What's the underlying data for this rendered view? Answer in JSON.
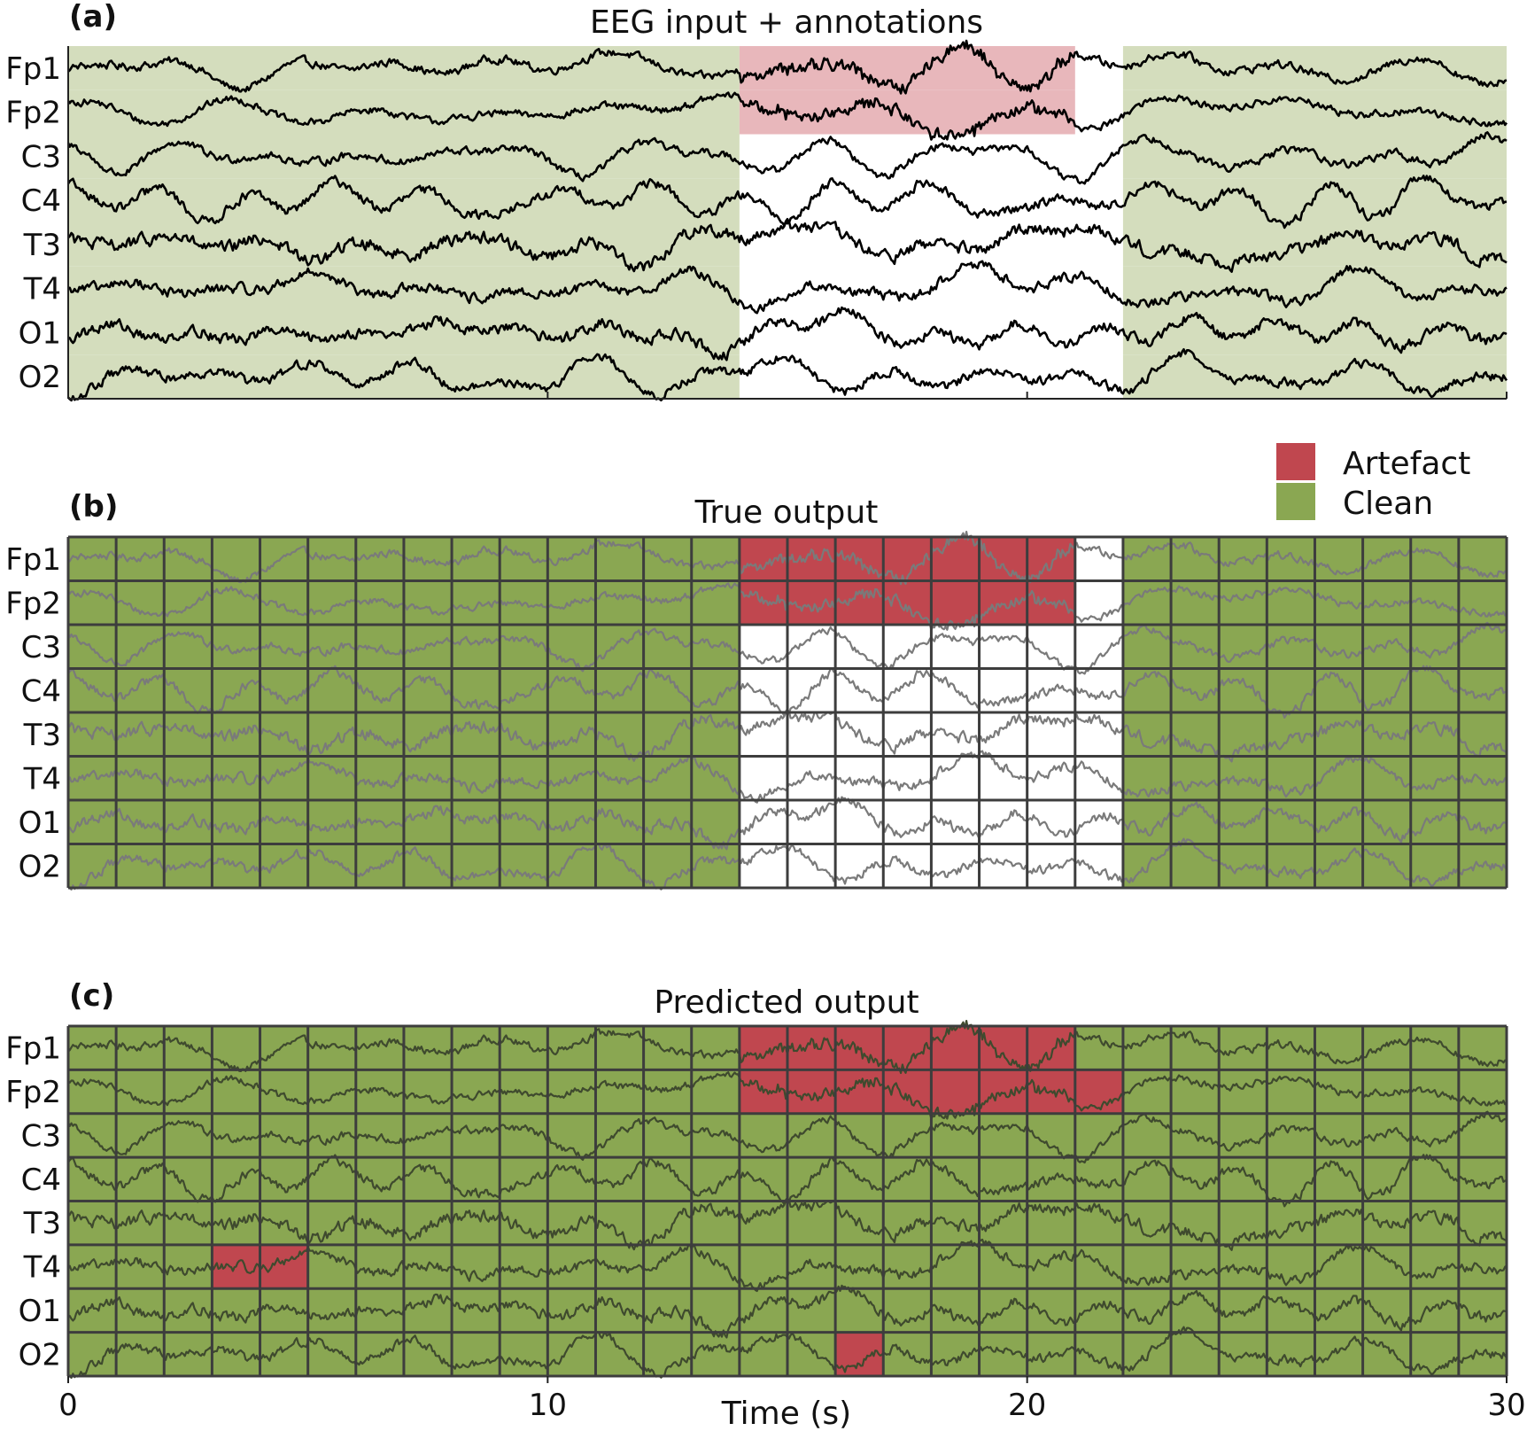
{
  "chart_data": {
    "type": "heatmap",
    "channels": [
      "Fp1",
      "Fp2",
      "C3",
      "C4",
      "T3",
      "T4",
      "O1",
      "O2"
    ],
    "xlabel": "Time (s)",
    "xlim": [
      0,
      30
    ],
    "xticks": [
      0,
      10,
      20,
      30
    ],
    "segment_seconds": 1,
    "legend": {
      "placement": "top-right",
      "entries": [
        {
          "label": "Artefact",
          "color": "#c0474f"
        },
        {
          "label": "Clean",
          "color": "#8aa752"
        }
      ]
    },
    "colors": {
      "artefact": "#c0474f",
      "clean": "#8aa752",
      "annotation_artefact": "#e8b7bb",
      "annotation_clean": "#d4ddbd",
      "grid": "#3d3d3d",
      "trace": "#000000"
    },
    "panels": [
      {
        "letter": "(a)",
        "title": "EEG input + annotations",
        "annotations": [
          {
            "label": "clean",
            "t_start": 0,
            "t_end": 14,
            "channels": [
              "Fp1",
              "Fp2",
              "C3",
              "C4",
              "T3",
              "T4",
              "O1",
              "O2"
            ]
          },
          {
            "label": "artefact",
            "t_start": 14,
            "t_end": 21,
            "channels": [
              "Fp1",
              "Fp2"
            ]
          },
          {
            "label": "clean",
            "t_start": 22,
            "t_end": 30,
            "channels": [
              "Fp1",
              "Fp2",
              "C3",
              "C4",
              "T3",
              "T4",
              "O1",
              "O2"
            ]
          }
        ]
      },
      {
        "letter": "(b)",
        "title": "True output",
        "grid": [
          {
            "label": "clean",
            "t_start": 0,
            "t_end": 14,
            "channels": [
              "Fp1",
              "Fp2",
              "C3",
              "C4",
              "T3",
              "T4",
              "O1",
              "O2"
            ]
          },
          {
            "label": "artefact",
            "t_start": 14,
            "t_end": 21,
            "channels": [
              "Fp1",
              "Fp2"
            ]
          },
          {
            "label": "clean",
            "t_start": 22,
            "t_end": 30,
            "channels": [
              "Fp1",
              "Fp2",
              "C3",
              "C4",
              "T3",
              "T4",
              "O1",
              "O2"
            ]
          }
        ]
      },
      {
        "letter": "(c)",
        "title": "Predicted output",
        "grid": [
          {
            "label": "clean",
            "t_start": 0,
            "t_end": 30,
            "channels": [
              "Fp1",
              "Fp2",
              "C3",
              "C4",
              "T3",
              "T4",
              "O1",
              "O2"
            ]
          },
          {
            "label": "artefact",
            "t_start": 14,
            "t_end": 21,
            "channels": [
              "Fp1"
            ]
          },
          {
            "label": "artefact",
            "t_start": 14,
            "t_end": 22,
            "channels": [
              "Fp2"
            ]
          },
          {
            "label": "artefact",
            "t_start": 3,
            "t_end": 5,
            "channels": [
              "T4"
            ]
          },
          {
            "label": "artefact",
            "t_start": 16,
            "t_end": 17,
            "channels": [
              "O2"
            ]
          }
        ]
      }
    ]
  }
}
